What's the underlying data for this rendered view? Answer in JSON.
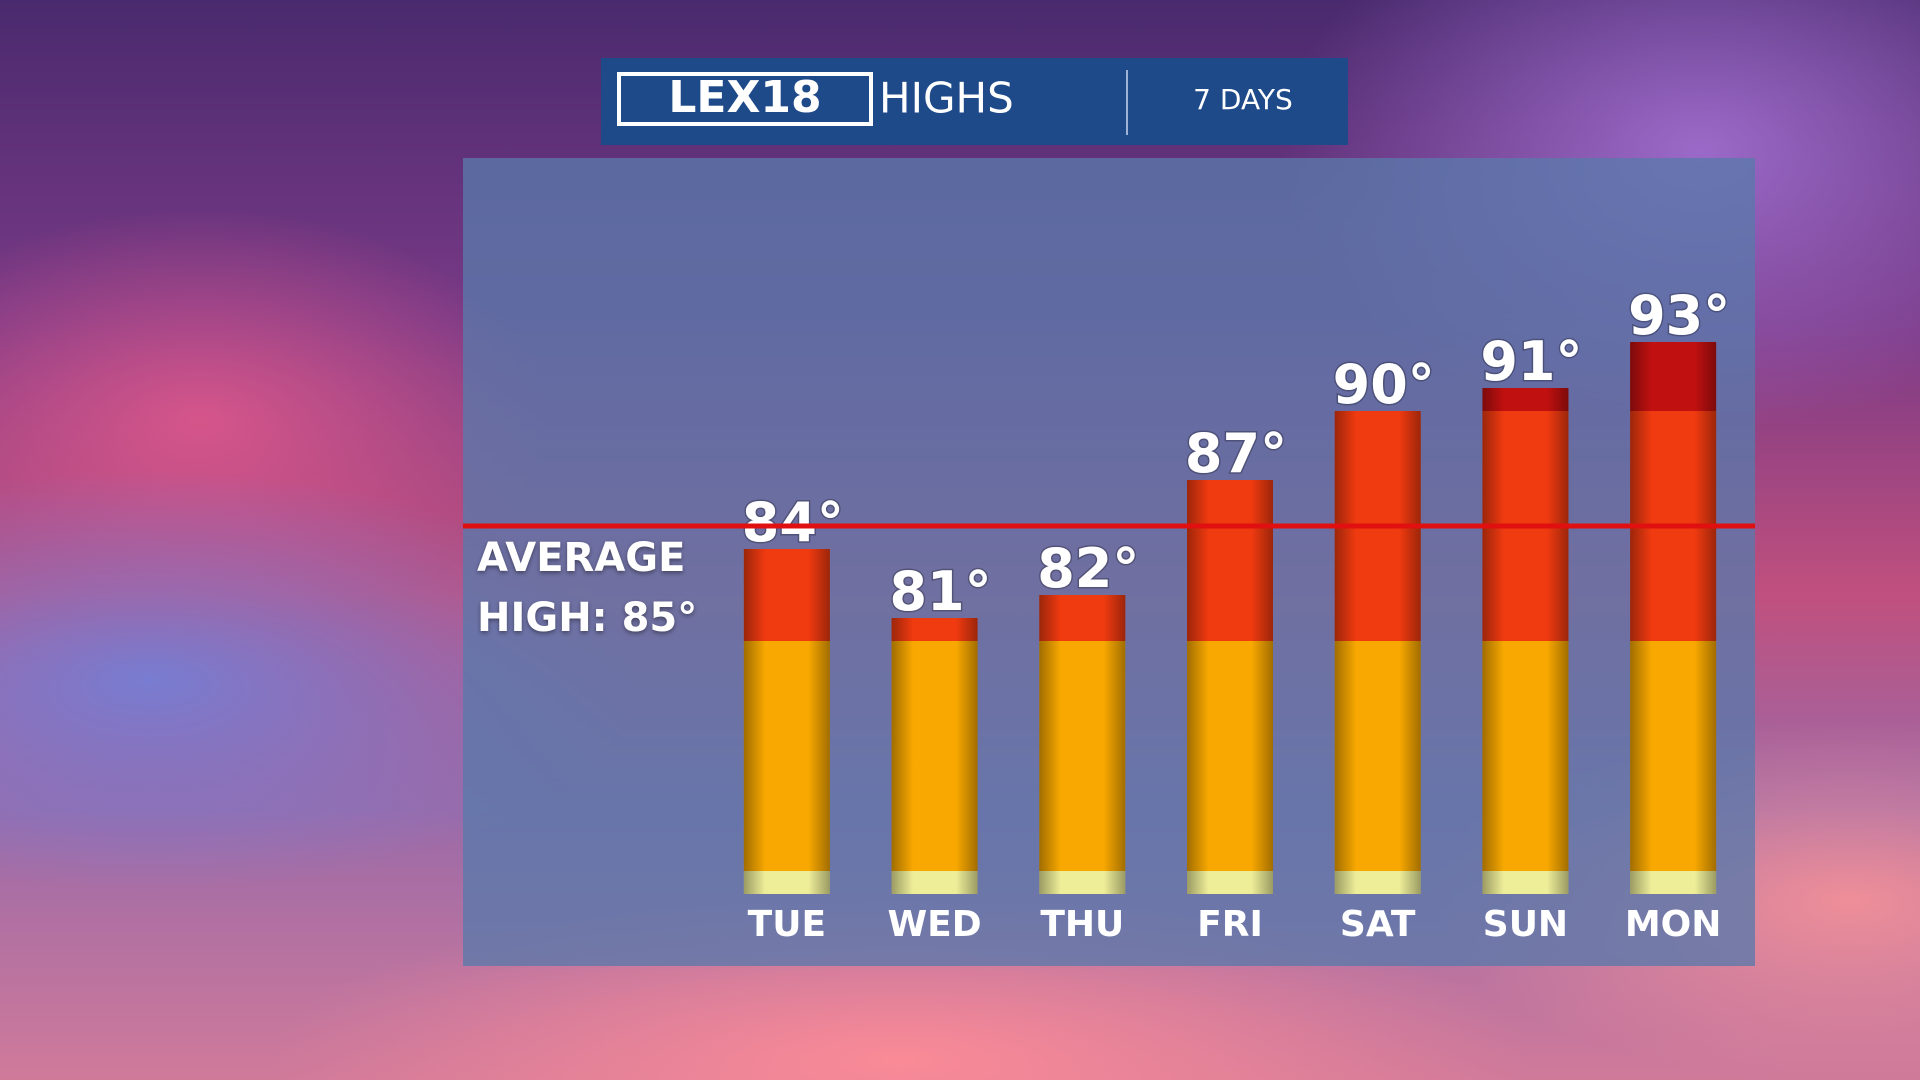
{
  "chart_data": {
    "type": "bar",
    "logo": "LEX18",
    "title": "HIGHS",
    "subtitle": "7 DAYS",
    "categories": [
      "TUE",
      "WED",
      "THU",
      "FRI",
      "SAT",
      "SUN",
      "MON"
    ],
    "values": [
      84,
      81,
      82,
      87,
      90,
      91,
      93
    ],
    "value_labels": [
      "84°",
      "81°",
      "82°",
      "87°",
      "90°",
      "91°",
      "93°"
    ],
    "ylim": [
      69,
      101
    ],
    "reference_line": {
      "value": 85,
      "label": "AVERAGE HIGH: 85°",
      "color": "#e01010"
    }
  }
}
